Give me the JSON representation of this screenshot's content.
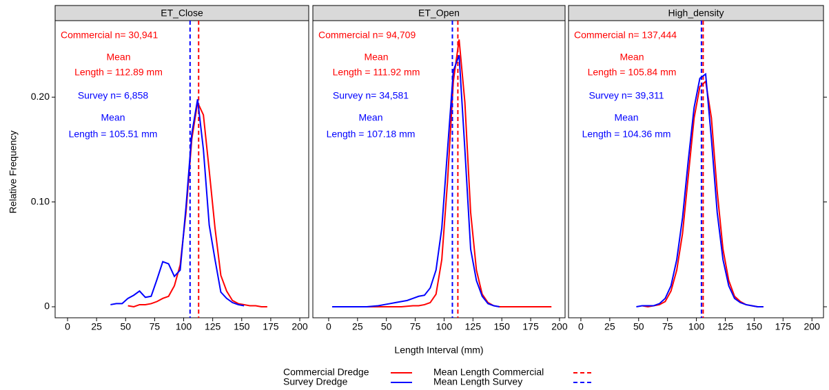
{
  "chart_data": [
    {
      "type": "line",
      "title": "ET_Close",
      "ylabel": "Relative Frequency",
      "xlim": [
        -10.7,
        207.7
      ],
      "xticks": [
        0,
        25,
        50,
        75,
        100,
        125,
        150,
        175,
        200
      ],
      "ylim": [
        -0.0105,
        0.273
      ],
      "yticks": [
        0,
        {
          "value": 0.1,
          "label": "0.10"
        },
        {
          "value": 0.2,
          "label": "0.20"
        }
      ],
      "series": [
        {
          "name": "Commercial Dredge",
          "color": "#ff0000",
          "n_label": "Commercial n= 30,941",
          "mean_title": "Mean",
          "mean": {
            "value": 112.89,
            "label": "Length = 112.89 mm"
          },
          "mean_name": "Mean Length Commercial",
          "x": [
            52,
            57,
            62,
            67,
            72,
            77,
            82,
            87,
            92,
            97,
            102,
            107,
            112,
            117,
            122,
            127,
            132,
            137,
            142,
            147,
            152,
            157,
            162,
            167,
            172
          ],
          "values": [
            0.001,
            0,
            0.002,
            0.002,
            0.003,
            0.005,
            0.008,
            0.01,
            0.02,
            0.04,
            0.09,
            0.16,
            0.195,
            0.183,
            0.13,
            0.075,
            0.03,
            0.015,
            0.006,
            0.003,
            0.002,
            0.001,
            0.001,
            0,
            0
          ]
        },
        {
          "name": "Survey Dredge",
          "color": "#0000ff",
          "n_label": "Survey n= 6,858",
          "mean_title": "Mean",
          "mean": {
            "value": 105.51,
            "label": "Length = 105.51 mm"
          },
          "mean_name": "Mean Length Survey",
          "x": [
            37,
            42,
            47,
            52,
            57,
            62,
            67,
            72,
            77,
            82,
            87,
            92,
            97,
            102,
            107,
            112,
            117,
            122,
            127,
            132,
            137,
            142,
            147,
            152
          ],
          "values": [
            0.002,
            0.003,
            0.003,
            0.008,
            0.011,
            0.015,
            0.009,
            0.01,
            0.026,
            0.043,
            0.041,
            0.029,
            0.035,
            0.095,
            0.165,
            0.198,
            0.15,
            0.078,
            0.045,
            0.014,
            0.008,
            0.004,
            0.002,
            0.001
          ]
        }
      ]
    },
    {
      "type": "line",
      "title": "ET_Open",
      "xlabel": "Length Interval (mm)",
      "xlim": [
        -13.7,
        204.8
      ],
      "xticks": [
        0,
        25,
        50,
        75,
        100,
        125,
        150,
        175,
        200
      ],
      "series": [
        {
          "name": "Commercial Dredge",
          "color": "#ff0000",
          "n_label": "Commercial n= 94,709",
          "mean_title": "Mean",
          "mean": {
            "value": 111.92,
            "label": "Length = 111.92 mm"
          },
          "x": [
            3,
            13,
            23,
            33,
            43,
            53,
            63,
            73,
            78,
            83,
            88,
            93,
            98,
            103,
            108,
            113,
            118,
            123,
            128,
            133,
            138,
            143,
            148,
            158,
            168,
            178,
            193
          ],
          "values": [
            0,
            0,
            0,
            0,
            0,
            0,
            0,
            0.001,
            0.001,
            0.002,
            0.004,
            0.012,
            0.045,
            0.12,
            0.215,
            0.255,
            0.195,
            0.09,
            0.035,
            0.012,
            0.004,
            0.001,
            0,
            0,
            0,
            0,
            0
          ]
        },
        {
          "name": "Survey Dredge",
          "color": "#0000ff",
          "n_label": "Survey n= 34,581",
          "mean_title": "Mean",
          "mean": {
            "value": 107.18,
            "label": "Length = 107.18 mm"
          },
          "x": [
            3,
            13,
            23,
            33,
            43,
            48,
            53,
            58,
            63,
            68,
            73,
            78,
            83,
            88,
            93,
            98,
            103,
            108,
            113,
            118,
            123,
            128,
            133,
            138,
            143,
            148
          ],
          "values": [
            0,
            0,
            0,
            0,
            0.001,
            0.002,
            0.003,
            0.004,
            0.005,
            0.006,
            0.008,
            0.01,
            0.011,
            0.018,
            0.035,
            0.075,
            0.15,
            0.225,
            0.24,
            0.15,
            0.055,
            0.025,
            0.01,
            0.003,
            0.001,
            0
          ]
        }
      ]
    },
    {
      "type": "line",
      "title": "High_density",
      "xlim": [
        -10.7,
        210
      ],
      "xticks": [
        0,
        25,
        50,
        75,
        100,
        125,
        150,
        175,
        200
      ],
      "series": [
        {
          "name": "Commercial Dredge",
          "color": "#ff0000",
          "n_label": "Commercial n= 137,444",
          "mean_title": "Mean",
          "mean": {
            "value": 105.84,
            "label": "Length = 105.84 mm"
          },
          "x": [
            53,
            58,
            63,
            68,
            73,
            78,
            83,
            88,
            93,
            98,
            103,
            108,
            113,
            118,
            123,
            128,
            133,
            138,
            143,
            148,
            153,
            158
          ],
          "values": [
            0.001,
            0,
            0.001,
            0.002,
            0.005,
            0.015,
            0.035,
            0.07,
            0.125,
            0.18,
            0.21,
            0.215,
            0.18,
            0.11,
            0.055,
            0.025,
            0.01,
            0.005,
            0.002,
            0.001,
            0,
            0
          ]
        },
        {
          "name": "Survey Dredge",
          "color": "#0000ff",
          "n_label": "Survey n= 39,311",
          "mean_title": "Mean",
          "mean": {
            "value": 104.36,
            "label": "Length = 104.36 mm"
          },
          "x": [
            48,
            53,
            58,
            63,
            68,
            73,
            78,
            83,
            88,
            93,
            98,
            103,
            108,
            113,
            118,
            123,
            128,
            133,
            138,
            143,
            148,
            153,
            158
          ],
          "values": [
            0,
            0.001,
            0.001,
            0.001,
            0.003,
            0.008,
            0.02,
            0.045,
            0.085,
            0.14,
            0.19,
            0.218,
            0.222,
            0.16,
            0.09,
            0.045,
            0.02,
            0.008,
            0.004,
            0.002,
            0.001,
            0,
            0
          ]
        }
      ]
    }
  ]
}
